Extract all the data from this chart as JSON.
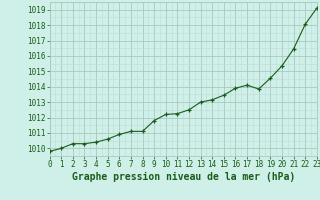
{
  "full_x": [
    0,
    1,
    2,
    3,
    4,
    5,
    6,
    7,
    8,
    9,
    10,
    11,
    12,
    13,
    14,
    15,
    16,
    17,
    18,
    19,
    20,
    21,
    22,
    23
  ],
  "full_y": [
    1009.8,
    1010.0,
    1010.3,
    1010.3,
    1010.4,
    1010.6,
    1010.9,
    1011.1,
    1011.1,
    1011.8,
    1012.2,
    1012.25,
    1012.5,
    1013.0,
    1013.15,
    1013.45,
    1013.9,
    1014.1,
    1013.85,
    1014.55,
    1015.35,
    1016.45,
    1018.05,
    1019.1
  ],
  "line_color": "#1a5c1a",
  "marker_color": "#1a5c1a",
  "bg_color": "#cef0e8",
  "grid_major_color": "#a8c8c0",
  "grid_minor_color": "#c0dcd6",
  "xlabel": "Graphe pression niveau de la mer (hPa)",
  "xlabel_color": "#1a5c1a",
  "ylabel_ticks": [
    1010,
    1011,
    1012,
    1013,
    1014,
    1015,
    1016,
    1017,
    1018,
    1019
  ],
  "xlim": [
    0,
    23
  ],
  "ylim": [
    1009.5,
    1019.5
  ],
  "xtick_labels": [
    "0",
    "1",
    "2",
    "3",
    "4",
    "5",
    "6",
    "7",
    "8",
    "9",
    "10",
    "11",
    "12",
    "13",
    "14",
    "15",
    "16",
    "17",
    "18",
    "19",
    "20",
    "21",
    "22",
    "23"
  ],
  "tick_fontsize": 5.5,
  "xlabel_fontsize": 7
}
